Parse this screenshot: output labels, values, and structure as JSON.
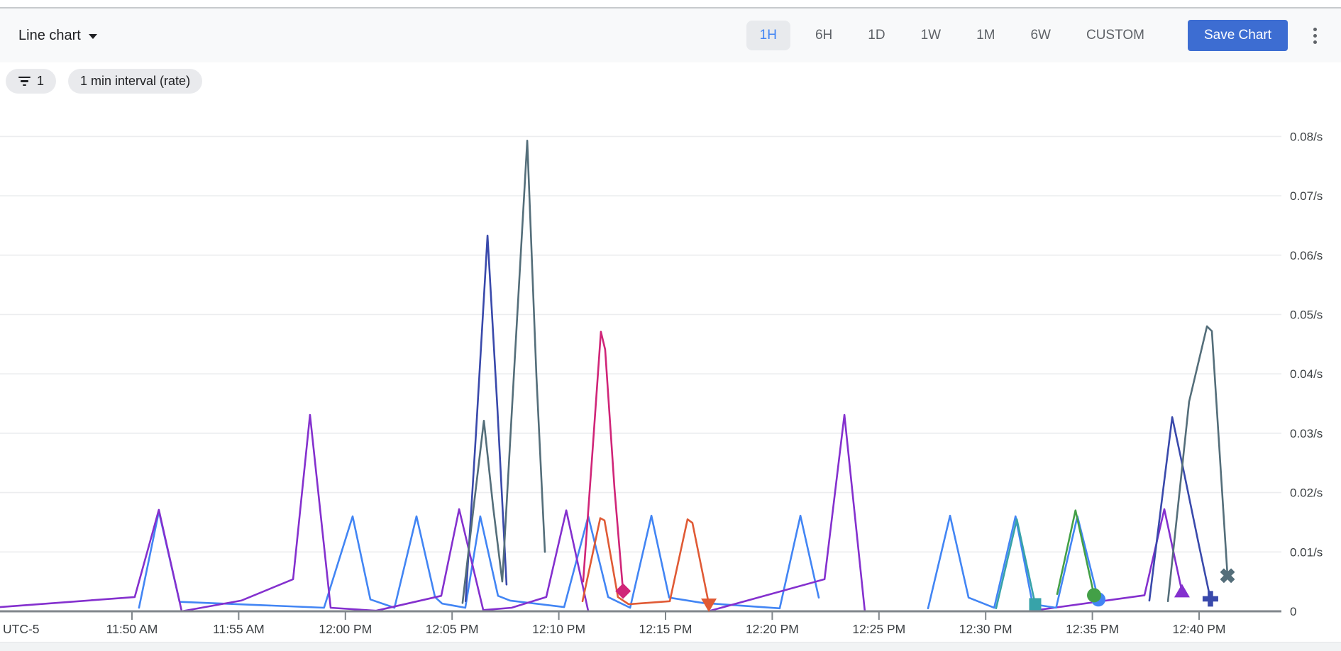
{
  "toolbar": {
    "chart_type_label": "Line chart",
    "ranges": [
      {
        "label": "1H",
        "selected": true
      },
      {
        "label": "6H",
        "selected": false
      },
      {
        "label": "1D",
        "selected": false
      },
      {
        "label": "1W",
        "selected": false
      },
      {
        "label": "1M",
        "selected": false
      },
      {
        "label": "6W",
        "selected": false
      },
      {
        "label": "CUSTOM",
        "selected": false
      }
    ],
    "save_button_label": "Save Chart"
  },
  "filters": {
    "filter_count": "1",
    "interval_chip_label": "1 min interval (rate)"
  },
  "ui_colors": {
    "accent_blue": "#4285f4",
    "save_button_bg": "#3d6dd2",
    "toolbar_bg": "#f8f9fa",
    "chip_bg": "#e9eaed",
    "text_primary": "#202124",
    "text_secondary": "#5f6368",
    "axis_line": "#80868b",
    "gridline": "#ecedef",
    "axis_label": "#3c4043"
  },
  "chart_data": {
    "type": "line",
    "unit": "/s",
    "title": "",
    "grid": "horizontal",
    "legend": "none",
    "x_axis": {
      "timezone_label": "UTC-5",
      "ticks": [
        {
          "minute": 0,
          "label": "11:50 AM"
        },
        {
          "minute": 5,
          "label": "11:55 AM"
        },
        {
          "minute": 10,
          "label": "12:00 PM"
        },
        {
          "minute": 15,
          "label": "12:05 PM"
        },
        {
          "minute": 20,
          "label": "12:10 PM"
        },
        {
          "minute": 25,
          "label": "12:15 PM"
        },
        {
          "minute": 30,
          "label": "12:20 PM"
        },
        {
          "minute": 35,
          "label": "12:25 PM"
        },
        {
          "minute": 40,
          "label": "12:30 PM"
        },
        {
          "minute": 45,
          "label": "12:35 PM"
        },
        {
          "minute": 50,
          "label": "12:40 PM"
        }
      ],
      "range_minutes": [
        -6.2,
        53.9
      ]
    },
    "y_axis": {
      "ticks": [
        {
          "value": 0.08,
          "label": "0.08/s"
        },
        {
          "value": 0.07,
          "label": "0.07/s"
        },
        {
          "value": 0.06,
          "label": "0.06/s"
        },
        {
          "value": 0.05,
          "label": "0.05/s"
        },
        {
          "value": 0.04,
          "label": "0.04/s"
        },
        {
          "value": 0.03,
          "label": "0.03/s"
        },
        {
          "value": 0.02,
          "label": "0.02/s"
        },
        {
          "value": 0.01,
          "label": "0.01/s"
        },
        {
          "value": 0,
          "label": "0"
        }
      ],
      "max": 0.085
    },
    "series": [
      {
        "name": "blue-a",
        "color": "#4285f4",
        "marker": "none",
        "points": [
          [
            0.33,
            0.0006
          ],
          [
            1.26,
            0.0168
          ],
          [
            2.23,
            0.0016
          ],
          [
            9.0,
            0.0006
          ],
          [
            10.34,
            0.016
          ],
          [
            11.17,
            0.002
          ],
          [
            12.3,
            0.0006
          ],
          [
            13.33,
            0.016
          ],
          [
            14.2,
            0.0024
          ],
          [
            14.53,
            0.0013
          ],
          [
            15.62,
            0.0006
          ],
          [
            16.32,
            0.016
          ],
          [
            17.15,
            0.0026
          ],
          [
            17.72,
            0.0018
          ],
          [
            20.25,
            0.0007
          ],
          [
            21.38,
            0.016
          ],
          [
            22.31,
            0.0024
          ],
          [
            23.34,
            0.0006
          ],
          [
            24.34,
            0.0161
          ],
          [
            25.17,
            0.0023
          ],
          [
            26.76,
            0.0014
          ],
          [
            30.35,
            0.0005
          ],
          [
            31.32,
            0.0161
          ],
          [
            32.18,
            0.0023
          ]
        ]
      },
      {
        "name": "purple",
        "color": "#8430ce",
        "marker": "triangle-up",
        "points": [
          [
            -6.18,
            0.0007
          ],
          [
            0.13,
            0.0024
          ],
          [
            1.26,
            0.0171
          ],
          [
            2.33,
            0
          ],
          [
            5.12,
            0.0018
          ],
          [
            7.55,
            0.0054
          ],
          [
            8.34,
            0.0331
          ],
          [
            9.31,
            0.0006
          ],
          [
            11.44,
            0.0001
          ],
          [
            14.49,
            0.0026
          ],
          [
            15.33,
            0.0172
          ],
          [
            16.46,
            0.0002
          ],
          [
            17.79,
            0.0006
          ],
          [
            19.41,
            0.0024
          ],
          [
            20.35,
            0.017
          ],
          [
            21.38,
            0
          ],
          [
            27.0,
            0
          ],
          [
            32.45,
            0.0054
          ],
          [
            33.38,
            0.0331
          ],
          [
            34.34,
            0
          ],
          [
            42.0,
            0
          ],
          [
            47.44,
            0.0027
          ],
          [
            48.37,
            0.0172
          ],
          [
            49.2,
            0.0033
          ]
        ]
      },
      {
        "name": "indigo-a",
        "color": "#3949ab",
        "marker": "none",
        "points": [
          [
            15.63,
            0.0017
          ],
          [
            16.12,
            0.0301
          ],
          [
            16.66,
            0.0633
          ],
          [
            17.12,
            0.0343
          ],
          [
            17.55,
            0.0045
          ]
        ]
      },
      {
        "name": "slate-a",
        "color": "#546e7a",
        "marker": "none",
        "points": [
          [
            15.49,
            0.0014
          ],
          [
            15.99,
            0.017
          ],
          [
            16.49,
            0.0321
          ],
          [
            16.92,
            0.0176
          ],
          [
            17.35,
            0.005
          ],
          [
            17.95,
            0.0433
          ],
          [
            18.52,
            0.0793
          ],
          [
            18.95,
            0.0397
          ],
          [
            19.35,
            0.01
          ]
        ]
      },
      {
        "name": "pink",
        "color": "#d02578",
        "marker": "diamond",
        "points": [
          [
            21.14,
            0.005
          ],
          [
            21.57,
            0.0265
          ],
          [
            21.97,
            0.0471
          ],
          [
            22.17,
            0.0441
          ],
          [
            22.61,
            0.0206
          ],
          [
            23.01,
            0.0034
          ]
        ]
      },
      {
        "name": "orange",
        "color": "#e05a35",
        "marker": "triangle-down",
        "points": [
          [
            21.11,
            0.0017
          ],
          [
            21.94,
            0.0157
          ],
          [
            22.14,
            0.0153
          ],
          [
            22.77,
            0.0024
          ],
          [
            23.27,
            0.0012
          ],
          [
            25.2,
            0.0017
          ],
          [
            26.03,
            0.0155
          ],
          [
            26.26,
            0.0149
          ],
          [
            27.03,
            0.0012
          ]
        ]
      },
      {
        "name": "blue-b",
        "color": "#4285f4",
        "marker": "circle",
        "points": [
          [
            37.3,
            0.0005
          ],
          [
            38.33,
            0.0161
          ],
          [
            39.2,
            0.0023
          ],
          [
            40.4,
            0.0006
          ],
          [
            41.4,
            0.016
          ],
          [
            42.2,
            0.0012
          ],
          [
            43.3,
            0.0006
          ],
          [
            44.3,
            0.016
          ],
          [
            45.28,
            0.002
          ]
        ]
      },
      {
        "name": "teal",
        "color": "#37a3a9",
        "marker": "square",
        "points": [
          [
            40.49,
            0.0005
          ],
          [
            41.46,
            0.0155
          ],
          [
            42.32,
            0.0012
          ]
        ]
      },
      {
        "name": "green",
        "color": "#43a047",
        "marker": "circle",
        "points": [
          [
            43.35,
            0.0029
          ],
          [
            44.21,
            0.017
          ],
          [
            45.08,
            0.0027
          ]
        ]
      },
      {
        "name": "navy-b",
        "color": "#3949ab",
        "marker": "plus",
        "points": [
          [
            47.67,
            0.0018
          ],
          [
            48.74,
            0.0327
          ],
          [
            49.27,
            0.0238
          ],
          [
            50.0,
            0.011
          ],
          [
            50.53,
            0.0021
          ]
        ]
      },
      {
        "name": "slate-b",
        "color": "#546e7a",
        "marker": "x",
        "points": [
          [
            48.54,
            0.0017
          ],
          [
            49.53,
            0.0353
          ],
          [
            50.37,
            0.048
          ],
          [
            50.6,
            0.0472
          ],
          [
            51.33,
            0.006
          ]
        ]
      }
    ]
  }
}
